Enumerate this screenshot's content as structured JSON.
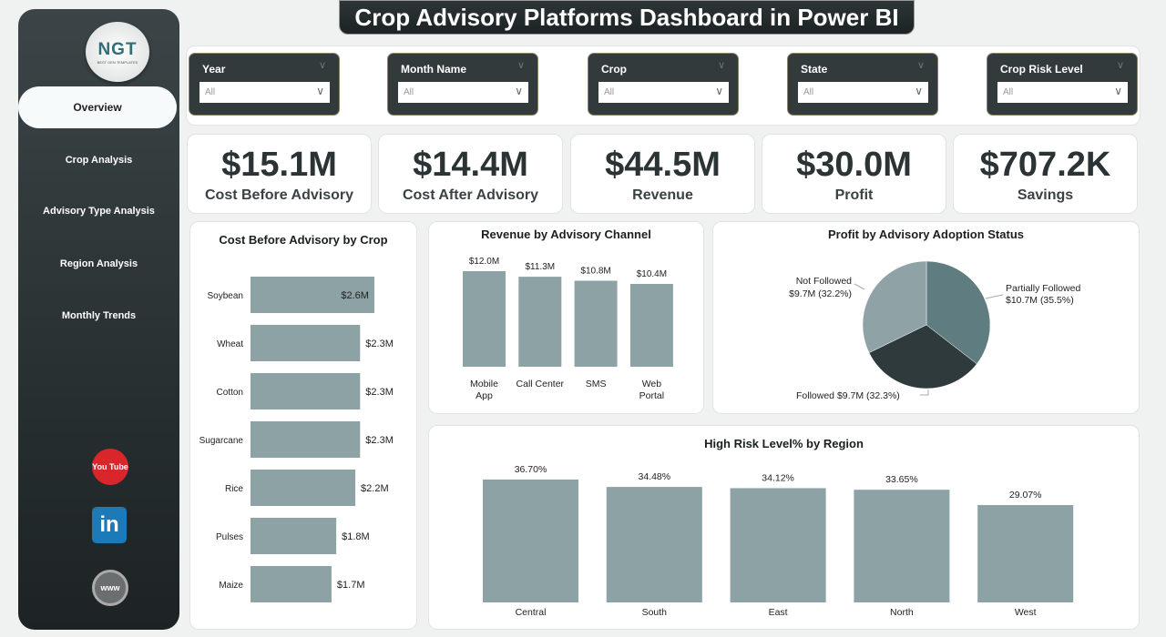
{
  "title": "Crop Advisory Platforms Dashboard in Power BI",
  "logo": {
    "text": "NGT",
    "subtext": "BEST GEN TEMPLATES"
  },
  "nav": [
    {
      "label": "Overview",
      "active": true
    },
    {
      "label": "Crop Analysis"
    },
    {
      "label": "Advisory Type Analysis"
    },
    {
      "label": "Region Analysis"
    },
    {
      "label": "Monthly Trends"
    }
  ],
  "social": [
    {
      "icon": "youtube-icon",
      "label": "You Tube",
      "color": "#d9262b"
    },
    {
      "icon": "linkedin-icon",
      "label": "in",
      "color": "#1d7ab8"
    },
    {
      "icon": "globe-icon",
      "label": "www",
      "color": "#6b6e6f"
    }
  ],
  "filters": [
    {
      "label": "Year",
      "value": "All"
    },
    {
      "label": "Month Name",
      "value": "All"
    },
    {
      "label": "Crop",
      "value": "All"
    },
    {
      "label": "State",
      "value": "All"
    },
    {
      "label": "Crop Risk Level",
      "value": "All"
    }
  ],
  "kpis": [
    {
      "value": "$15.1M",
      "label": "Cost Before Advisory"
    },
    {
      "value": "$14.4M",
      "label": "Cost After Advisory"
    },
    {
      "value": "$44.5M",
      "label": "Revenue"
    },
    {
      "value": "$30.0M",
      "label": "Profit"
    },
    {
      "value": "$707.2K",
      "label": "Savings"
    }
  ],
  "chart_data": [
    {
      "type": "bar",
      "orientation": "horizontal",
      "title": "Cost Before Advisory by Crop",
      "categories": [
        "Soybean",
        "Wheat",
        "Cotton",
        "Sugarcane",
        "Rice",
        "Pulses",
        "Maize"
      ],
      "values": [
        2.6,
        2.3,
        2.3,
        2.3,
        2.2,
        1.8,
        1.7
      ],
      "labels": [
        "$2.6M",
        "$2.3M",
        "$2.3M",
        "$2.3M",
        "$2.2M",
        "$1.8M",
        "$1.7M"
      ],
      "color": "#8ca2a5"
    },
    {
      "type": "bar",
      "title": "Revenue by Advisory Channel",
      "categories": [
        "Mobile App",
        "Call Center",
        "SMS",
        "Web Portal"
      ],
      "values": [
        12.0,
        11.3,
        10.8,
        10.4
      ],
      "labels": [
        "$12.0M",
        "$11.3M",
        "$10.8M",
        "$10.4M"
      ],
      "color": "#8ca2a5"
    },
    {
      "type": "pie",
      "title": "Profit by Advisory Adoption Status",
      "slices": [
        {
          "name": "Partially Followed",
          "value": 10.7,
          "percent": 35.5,
          "label": "$10.7M (35.5%)",
          "color": "#5f7d80"
        },
        {
          "name": "Followed",
          "value": 9.7,
          "percent": 32.3,
          "label": "$9.7M (32.3%)",
          "color": "#2e3a3b"
        },
        {
          "name": "Not Followed",
          "value": 9.7,
          "percent": 32.2,
          "label": "$9.7M (32.2%)",
          "color": "#8fa3a6"
        }
      ]
    },
    {
      "type": "bar",
      "title": "High Risk Level% by Region",
      "categories": [
        "Central",
        "South",
        "East",
        "North",
        "West"
      ],
      "values": [
        36.7,
        34.48,
        34.12,
        33.65,
        29.07
      ],
      "labels": [
        "36.70%",
        "34.48%",
        "34.12%",
        "33.65%",
        "29.07%"
      ],
      "color": "#8ca2a5"
    }
  ]
}
